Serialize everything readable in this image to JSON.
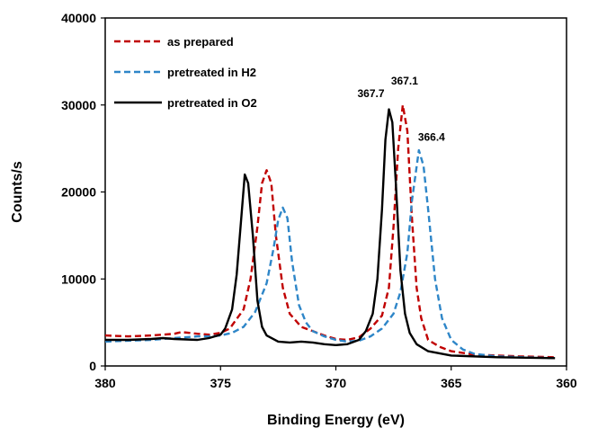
{
  "chart_data": {
    "type": "line",
    "title": "",
    "xlabel": "Binding Energy (eV)",
    "ylabel": "Counts/s",
    "xlim": [
      380,
      360
    ],
    "ylim": [
      0,
      40000
    ],
    "x_reversed": true,
    "xticks": [
      380,
      375,
      370,
      365,
      360
    ],
    "yticks": [
      0,
      10000,
      20000,
      30000,
      40000
    ],
    "grid": false,
    "legend_position": "top-left",
    "series": [
      {
        "name": "as prepared",
        "color": "#c00000",
        "dash": "dashed",
        "points": [
          [
            380,
            3500
          ],
          [
            379,
            3400
          ],
          [
            378,
            3500
          ],
          [
            377,
            3700
          ],
          [
            376.7,
            3900
          ],
          [
            376,
            3700
          ],
          [
            375.5,
            3600
          ],
          [
            375,
            3800
          ],
          [
            374.6,
            4300
          ],
          [
            374,
            6500
          ],
          [
            373.7,
            10000
          ],
          [
            373.4,
            16000
          ],
          [
            373.2,
            21000
          ],
          [
            373.0,
            22500
          ],
          [
            372.8,
            21000
          ],
          [
            372.6,
            15000
          ],
          [
            372.3,
            9000
          ],
          [
            372,
            6000
          ],
          [
            371.5,
            4500
          ],
          [
            371,
            4000
          ],
          [
            370.5,
            3500
          ],
          [
            370,
            3100
          ],
          [
            369.5,
            3000
          ],
          [
            369,
            3300
          ],
          [
            368.5,
            4300
          ],
          [
            368,
            5800
          ],
          [
            367.7,
            9000
          ],
          [
            367.5,
            16000
          ],
          [
            367.3,
            25000
          ],
          [
            367.1,
            30000
          ],
          [
            366.9,
            27000
          ],
          [
            366.7,
            17000
          ],
          [
            366.5,
            9000
          ],
          [
            366.3,
            5500
          ],
          [
            366,
            3000
          ],
          [
            365.5,
            2200
          ],
          [
            365,
            1700
          ],
          [
            364,
            1300
          ],
          [
            362,
            1100
          ],
          [
            360.5,
            1000
          ]
        ]
      },
      {
        "name": "pretreated in H2",
        "color": "#2e86c8",
        "dash": "dashed",
        "points": [
          [
            380,
            2800
          ],
          [
            379,
            2900
          ],
          [
            378,
            3000
          ],
          [
            377,
            3200
          ],
          [
            376,
            3400
          ],
          [
            375.5,
            3400
          ],
          [
            375,
            3500
          ],
          [
            374.5,
            3800
          ],
          [
            374,
            4500
          ],
          [
            373.5,
            6200
          ],
          [
            373,
            9500
          ],
          [
            372.7,
            13500
          ],
          [
            372.5,
            16800
          ],
          [
            372.3,
            18200
          ],
          [
            372.1,
            17000
          ],
          [
            371.9,
            12000
          ],
          [
            371.6,
            7000
          ],
          [
            371.3,
            5000
          ],
          [
            371,
            4000
          ],
          [
            370.5,
            3400
          ],
          [
            370,
            3000
          ],
          [
            369.5,
            2800
          ],
          [
            369,
            2900
          ],
          [
            368.5,
            3400
          ],
          [
            368,
            4300
          ],
          [
            367.5,
            6000
          ],
          [
            367.2,
            8500
          ],
          [
            366.9,
            13000
          ],
          [
            366.7,
            19000
          ],
          [
            366.4,
            24800
          ],
          [
            366.2,
            23000
          ],
          [
            366.0,
            18000
          ],
          [
            365.7,
            10000
          ],
          [
            365.4,
            5500
          ],
          [
            365,
            3000
          ],
          [
            364.5,
            1900
          ],
          [
            364,
            1400
          ],
          [
            363,
            1100
          ],
          [
            360.5,
            900
          ]
        ]
      },
      {
        "name": "pretreated in O2",
        "color": "#000000",
        "dash": "solid",
        "points": [
          [
            380,
            3000
          ],
          [
            379,
            3000
          ],
          [
            378,
            3100
          ],
          [
            377.5,
            3200
          ],
          [
            377,
            3100
          ],
          [
            376,
            3000
          ],
          [
            375.5,
            3200
          ],
          [
            375,
            3600
          ],
          [
            374.8,
            4300
          ],
          [
            374.5,
            6500
          ],
          [
            374.3,
            10500
          ],
          [
            374.1,
            17000
          ],
          [
            373.95,
            22000
          ],
          [
            373.8,
            21000
          ],
          [
            373.6,
            15000
          ],
          [
            373.4,
            7500
          ],
          [
            373.2,
            4500
          ],
          [
            373,
            3500
          ],
          [
            372.5,
            2800
          ],
          [
            372,
            2700
          ],
          [
            371.5,
            2800
          ],
          [
            371,
            2700
          ],
          [
            370.5,
            2500
          ],
          [
            370,
            2400
          ],
          [
            369.5,
            2500
          ],
          [
            369,
            3000
          ],
          [
            368.7,
            4000
          ],
          [
            368.4,
            6000
          ],
          [
            368.2,
            10000
          ],
          [
            368,
            18000
          ],
          [
            367.85,
            26000
          ],
          [
            367.7,
            29500
          ],
          [
            367.55,
            28000
          ],
          [
            367.4,
            21000
          ],
          [
            367.2,
            11000
          ],
          [
            367,
            6000
          ],
          [
            366.8,
            3800
          ],
          [
            366.5,
            2500
          ],
          [
            366,
            1700
          ],
          [
            365,
            1200
          ],
          [
            363,
            1000
          ],
          [
            360.5,
            900
          ]
        ]
      }
    ],
    "annotations": [
      {
        "text": "367.1",
        "x": 367.1,
        "y": 31500
      },
      {
        "text": "367.7",
        "x": 367.7,
        "y": 30500
      },
      {
        "text": "366.4",
        "x": 366.4,
        "y": 25500
      }
    ]
  }
}
